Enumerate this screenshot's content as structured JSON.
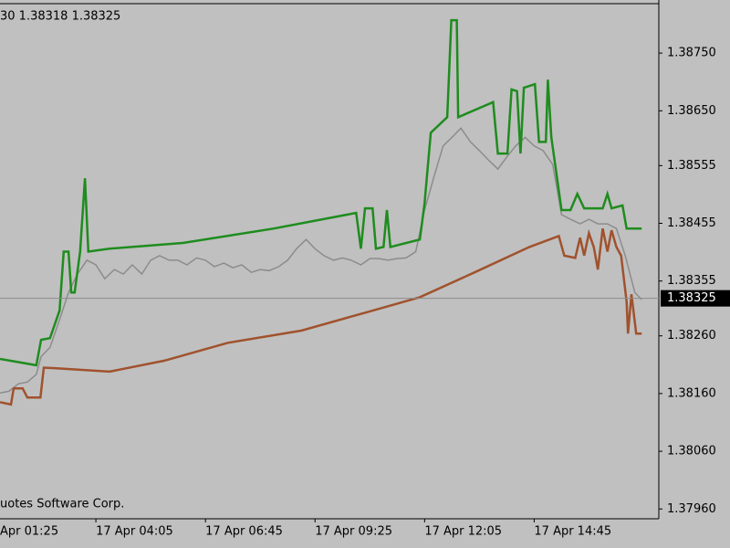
{
  "chart_data": {
    "type": "line",
    "header": "30 1.38318 1.38325",
    "footer": "uotes Software Corp.",
    "xlim": [
      105,
      1067
    ],
    "xticks": [
      {
        "value": 85,
        "label": "Apr 01:25"
      },
      {
        "value": 245,
        "label": "17 Apr 04:05"
      },
      {
        "value": 405,
        "label": "17 Apr 06:45"
      },
      {
        "value": 565,
        "label": "17 Apr 09:25"
      },
      {
        "value": 725,
        "label": "17 Apr 12:05"
      },
      {
        "value": 885,
        "label": "17 Apr 14:45"
      }
    ],
    "ylim": [
      1.37943,
      1.38842
    ],
    "yticks": [
      {
        "value": 1.3875,
        "label": "1.38750"
      },
      {
        "value": 1.3865,
        "label": "1.38650"
      },
      1.38555,
      1.38455,
      1.38355,
      {
        "value": 1.3826,
        "label": "1.38260"
      },
      {
        "value": 1.3816,
        "label": "1.38160"
      },
      {
        "value": 1.3806,
        "label": "1.38060"
      },
      {
        "value": 1.3796,
        "label": "1.37960"
      }
    ],
    "current_price": 1.38325,
    "grid": false,
    "series": [
      {
        "color": "#8c8c8c",
        "x": [
          105,
          118,
          132,
          145,
          158,
          165,
          178,
          192,
          205,
          218,
          232,
          245,
          258,
          272,
          285,
          298,
          312,
          325,
          338,
          352,
          365,
          378,
          392,
          405,
          418,
          432,
          445,
          458,
          472,
          485,
          498,
          512,
          525,
          538,
          552,
          565,
          578,
          592,
          605,
          618,
          632,
          645,
          658,
          672,
          685,
          698,
          712,
          725,
          738,
          752,
          765,
          778,
          792,
          805,
          818,
          832,
          845,
          858,
          872,
          885,
          898,
          912,
          925,
          938,
          952,
          965,
          978,
          992,
          1005,
          1018,
          1032,
          1042
        ],
        "values": [
          1.38161,
          1.38164,
          1.38177,
          1.3818,
          1.38193,
          1.38224,
          1.3824,
          1.38288,
          1.38335,
          1.38367,
          1.38391,
          1.38383,
          1.38359,
          1.38375,
          1.38367,
          1.38383,
          1.38367,
          1.38391,
          1.38399,
          1.38391,
          1.38391,
          1.38383,
          1.38395,
          1.38391,
          1.3838,
          1.38386,
          1.38378,
          1.38383,
          1.3837,
          1.38375,
          1.38373,
          1.3838,
          1.38391,
          1.38411,
          1.38427,
          1.38411,
          1.38399,
          1.38391,
          1.38395,
          1.38391,
          1.38383,
          1.38394,
          1.38394,
          1.38391,
          1.38394,
          1.38395,
          1.38406,
          1.38478,
          1.38533,
          1.38589,
          1.38604,
          1.3862,
          1.38596,
          1.38581,
          1.38565,
          1.38549,
          1.3857,
          1.38589,
          1.38604,
          1.38589,
          1.38581,
          1.38557,
          1.3847,
          1.38462,
          1.38454,
          1.38462,
          1.38454,
          1.38454,
          1.38446,
          1.38399,
          1.38335,
          1.38323
        ]
      },
      {
        "color": "#1e8c1e",
        "x": [
          105,
          158,
          165,
          178,
          192,
          198,
          205,
          209,
          214,
          222,
          229,
          234,
          265,
          372,
          505,
          625,
          632,
          638,
          649,
          654,
          665,
          670,
          675,
          718,
          725,
          734,
          758,
          764,
          772,
          774,
          825,
          832,
          846,
          852,
          860,
          865,
          870,
          886,
          892,
          902,
          905,
          910,
          925,
          938,
          948,
          958,
          985,
          992,
          998,
          1014,
          1020,
          1042
        ],
        "values": [
          1.3822,
          1.38209,
          1.38253,
          1.38256,
          1.38304,
          1.38406,
          1.38406,
          1.38335,
          1.38335,
          1.38406,
          1.38533,
          1.38406,
          1.38411,
          1.38421,
          1.38446,
          1.38473,
          1.38411,
          1.38481,
          1.38481,
          1.38411,
          1.38414,
          1.38478,
          1.38414,
          1.38427,
          1.3849,
          1.38612,
          1.38639,
          1.38807,
          1.38807,
          1.38639,
          1.38665,
          1.38576,
          1.38576,
          1.38687,
          1.38684,
          1.38576,
          1.3869,
          1.38696,
          1.38596,
          1.38596,
          1.38704,
          1.38604,
          1.38478,
          1.38478,
          1.38506,
          1.38481,
          1.38481,
          1.38506,
          1.38481,
          1.38486,
          1.38446,
          1.38446
        ]
      },
      {
        "color": "#a0522d",
        "x": [
          105,
          121,
          125,
          138,
          145,
          164,
          169,
          185,
          265,
          345,
          438,
          545,
          638,
          718,
          798,
          878,
          921,
          929,
          945,
          952,
          958,
          965,
          972,
          978,
          985,
          992,
          998,
          1005,
          1012,
          1020,
          1022,
          1027,
          1034,
          1042
        ],
        "values": [
          1.38145,
          1.38141,
          1.38169,
          1.38169,
          1.38153,
          1.38153,
          1.38205,
          1.38204,
          1.38198,
          1.38217,
          1.38248,
          1.38269,
          1.383,
          1.38327,
          1.3837,
          1.38414,
          1.38433,
          1.38399,
          1.38395,
          1.3843,
          1.38399,
          1.38438,
          1.38414,
          1.38375,
          1.38446,
          1.38406,
          1.38443,
          1.38414,
          1.38399,
          1.38319,
          1.38264,
          1.38332,
          1.38264,
          1.38264
        ]
      }
    ]
  }
}
